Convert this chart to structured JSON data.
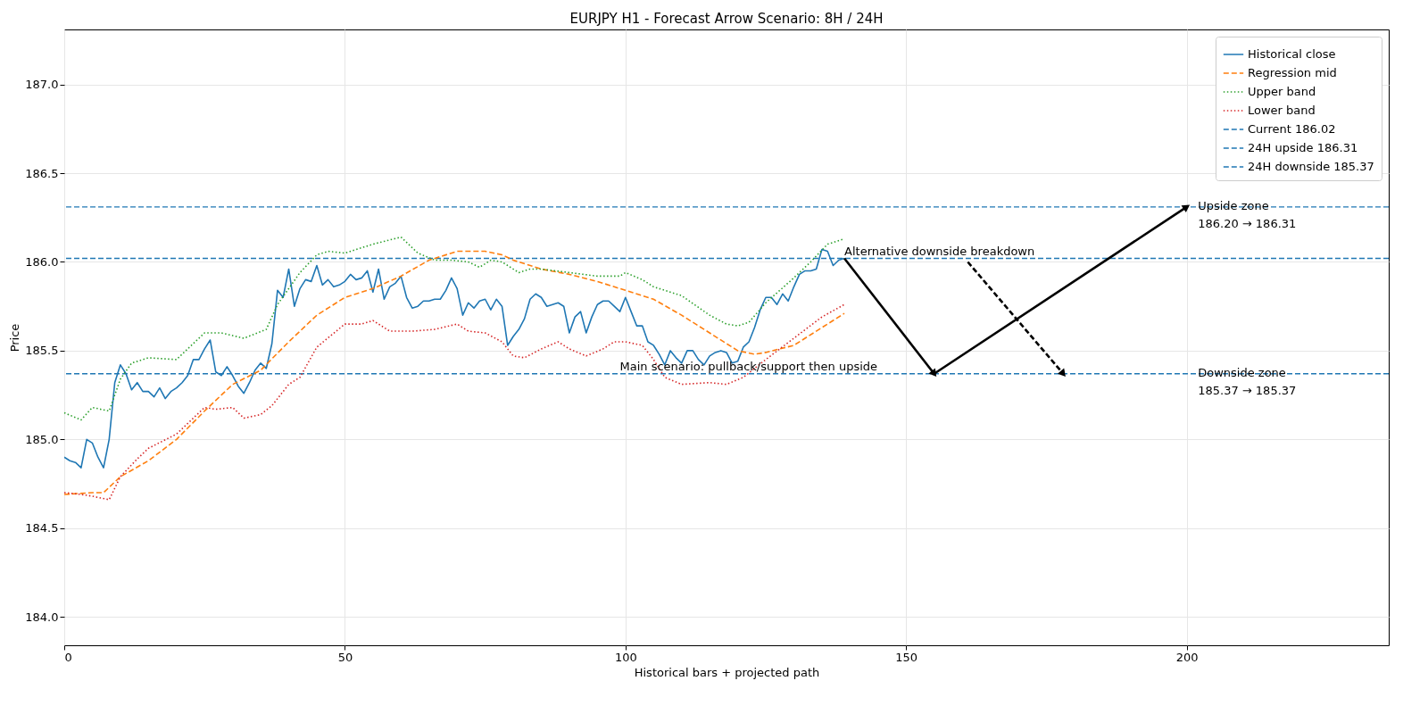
{
  "chart_data": {
    "type": "line",
    "title": "EURJPY H1 - Forecast Arrow Scenario: 8H / 24H",
    "xlabel": "Historical bars + projected path",
    "ylabel": "Price",
    "xlim": [
      0,
      236
    ],
    "ylim": [
      183.84,
      187.31
    ],
    "xticks": [
      0,
      50,
      100,
      150,
      200
    ],
    "yticks": [
      {
        "value": 184,
        "label": "184.0"
      },
      {
        "value": 184.5,
        "label": "184.5"
      },
      {
        "value": 185,
        "label": "185.0"
      },
      {
        "value": 185.5,
        "label": "185.5"
      },
      {
        "value": 186,
        "label": "186.0"
      },
      {
        "value": 186.5,
        "label": "186.5"
      },
      {
        "value": 187,
        "label": "187.0"
      }
    ],
    "grid": true,
    "legend": "top right",
    "series": [
      {
        "name": "Historical close",
        "color": "#1f77b4",
        "line_style": "solid",
        "x": [
          0,
          1,
          2,
          3,
          4,
          5,
          6,
          7,
          8,
          9,
          10,
          11,
          12,
          13,
          14,
          15,
          16,
          17,
          18,
          19,
          20,
          21,
          22,
          23,
          24,
          25,
          26,
          27,
          28,
          29,
          30,
          31,
          32,
          33,
          34,
          35,
          36,
          37,
          38,
          39,
          40,
          41,
          42,
          43,
          44,
          45,
          46,
          47,
          48,
          49,
          50,
          51,
          52,
          53,
          54,
          55,
          56,
          57,
          58,
          59,
          60,
          61,
          62,
          63,
          64,
          65,
          66,
          67,
          68,
          69,
          70,
          71,
          72,
          73,
          74,
          75,
          76,
          77,
          78,
          79,
          80,
          81,
          82,
          83,
          84,
          85,
          86,
          87,
          88,
          89,
          90,
          91,
          92,
          93,
          94,
          95,
          96,
          97,
          98,
          99,
          100,
          101,
          102,
          103,
          104,
          105,
          106,
          107,
          108,
          109,
          110,
          111,
          112,
          113,
          114,
          115,
          116,
          117,
          118,
          119,
          120,
          121,
          122,
          123,
          124,
          125,
          126,
          127,
          128,
          129,
          130,
          131,
          132,
          133,
          134,
          135,
          136,
          137,
          138,
          139
        ],
        "values": [
          184.9,
          184.88,
          184.87,
          184.84,
          185.0,
          184.98,
          184.9,
          184.84,
          185.0,
          185.32,
          185.42,
          185.37,
          185.28,
          185.32,
          185.27,
          185.27,
          185.24,
          185.29,
          185.23,
          185.27,
          185.29,
          185.32,
          185.36,
          185.45,
          185.45,
          185.51,
          185.56,
          185.38,
          185.36,
          185.41,
          185.36,
          185.3,
          185.26,
          185.32,
          185.39,
          185.43,
          185.4,
          185.54,
          185.84,
          185.8,
          185.96,
          185.75,
          185.85,
          185.9,
          185.89,
          185.98,
          185.87,
          185.9,
          185.86,
          185.87,
          185.89,
          185.93,
          185.9,
          185.91,
          185.95,
          185.83,
          185.96,
          185.79,
          185.86,
          185.88,
          185.92,
          185.8,
          185.74,
          185.75,
          185.78,
          185.78,
          185.79,
          185.79,
          185.84,
          185.91,
          185.85,
          185.7,
          185.77,
          185.74,
          185.78,
          185.79,
          185.73,
          185.79,
          185.75,
          185.53,
          185.58,
          185.62,
          185.68,
          185.79,
          185.82,
          185.8,
          185.75,
          185.76,
          185.77,
          185.75,
          185.6,
          185.69,
          185.72,
          185.6,
          185.69,
          185.76,
          185.78,
          185.78,
          185.75,
          185.72,
          185.8,
          185.72,
          185.64,
          185.64,
          185.55,
          185.53,
          185.48,
          185.42,
          185.5,
          185.46,
          185.43,
          185.5,
          185.5,
          185.45,
          185.42,
          185.47,
          185.49,
          185.5,
          185.49,
          185.43,
          185.44,
          185.52,
          185.55,
          185.63,
          185.73,
          185.8,
          185.8,
          185.76,
          185.82,
          185.78,
          185.86,
          185.93,
          185.95,
          185.95,
          185.96,
          186.07,
          186.06,
          185.98,
          186.01,
          186.02
        ]
      },
      {
        "name": "Regression mid",
        "color": "#ff7f0e",
        "line_style": "dashed",
        "x": [
          0,
          5,
          7,
          10,
          15,
          20,
          25,
          30,
          35,
          40,
          45,
          50,
          53,
          55,
          60,
          65,
          70,
          75,
          78,
          80,
          85,
          90,
          95,
          100,
          105,
          110,
          115,
          120,
          123,
          125,
          130,
          135,
          139
        ],
        "values": [
          184.69,
          184.7,
          184.7,
          184.79,
          184.88,
          185.0,
          185.16,
          185.31,
          185.39,
          185.55,
          185.7,
          185.8,
          185.83,
          185.85,
          185.92,
          186.01,
          186.06,
          186.06,
          186.04,
          186.01,
          185.96,
          185.93,
          185.89,
          185.84,
          185.79,
          185.7,
          185.6,
          185.5,
          185.48,
          185.49,
          185.53,
          185.63,
          185.71
        ]
      },
      {
        "name": "Upper band",
        "color": "#2ca02c",
        "line_style": "dotted",
        "x": [
          0,
          3,
          5,
          8,
          10,
          12,
          15,
          20,
          25,
          28,
          32,
          36,
          38,
          42,
          45,
          47,
          50,
          53,
          55,
          60,
          63,
          66,
          69,
          72,
          74,
          76,
          78,
          81,
          83,
          85,
          90,
          95,
          99,
          100,
          103,
          105,
          110,
          115,
          118,
          120,
          122,
          125,
          130,
          133,
          136,
          139
        ],
        "values": [
          185.15,
          185.11,
          185.18,
          185.16,
          185.34,
          185.43,
          185.46,
          185.45,
          185.6,
          185.6,
          185.57,
          185.62,
          185.76,
          185.94,
          186.04,
          186.06,
          186.05,
          186.08,
          186.1,
          186.14,
          186.05,
          186.01,
          186.01,
          186.0,
          185.97,
          186.01,
          186.0,
          185.94,
          185.96,
          185.96,
          185.94,
          185.92,
          185.92,
          185.94,
          185.9,
          185.86,
          185.81,
          185.7,
          185.65,
          185.64,
          185.66,
          185.77,
          185.91,
          186.0,
          186.1,
          186.13
        ]
      },
      {
        "name": "Lower band",
        "color": "#d62728",
        "line_style": "dotted",
        "x": [
          0,
          3,
          5,
          8,
          10,
          13,
          15,
          20,
          25,
          27,
          30,
          32,
          35,
          37,
          40,
          42,
          45,
          50,
          53,
          55,
          58,
          62,
          66,
          70,
          72,
          75,
          78,
          80,
          82,
          85,
          88,
          90,
          93,
          96,
          98,
          100,
          103,
          105,
          107,
          110,
          115,
          118,
          121,
          125,
          130,
          135,
          139
        ],
        "values": [
          184.7,
          184.69,
          184.68,
          184.66,
          184.79,
          184.89,
          184.95,
          185.03,
          185.18,
          185.17,
          185.18,
          185.12,
          185.14,
          185.19,
          185.31,
          185.35,
          185.52,
          185.65,
          185.65,
          185.67,
          185.61,
          185.61,
          185.62,
          185.65,
          185.61,
          185.6,
          185.55,
          185.47,
          185.46,
          185.51,
          185.55,
          185.51,
          185.47,
          185.51,
          185.55,
          185.55,
          185.53,
          185.45,
          185.35,
          185.31,
          185.32,
          185.31,
          185.35,
          185.45,
          185.57,
          185.69,
          185.76
        ]
      },
      {
        "color": "#000000",
        "line_style": "solid",
        "x": [
          139,
          155,
          200
        ],
        "values": [
          186.02,
          185.37,
          186.31
        ]
      },
      {
        "color": "#000000",
        "line_style": "dashed",
        "x": [
          161,
          178
        ],
        "values": [
          186.0,
          185.37
        ]
      }
    ],
    "ref_lines": [
      {
        "axis": "y",
        "value": 186.02,
        "label": "Current 186.02",
        "color": "#1f77b4",
        "line_style": "dashed"
      },
      {
        "axis": "y",
        "value": 186.31,
        "label": "24H upside 186.31",
        "color": "#1f77b4",
        "line_style": "dashed"
      },
      {
        "axis": "y",
        "value": 185.37,
        "label": "24H downside 185.37",
        "color": "#1f77b4",
        "line_style": "dashed"
      }
    ],
    "annotations": [
      {
        "text": "Upside zone\n186.20 → 186.31",
        "x": 202,
        "y": 186.31
      },
      {
        "text": "Downside zone\n185.37 → 185.37",
        "x": 202,
        "y": 185.37
      },
      {
        "text": "Alternative downside breakdown",
        "x": 139,
        "y": 186.02
      },
      {
        "text": "Main scenario: pullback/support then upside",
        "x": 99,
        "y": 185.37
      }
    ]
  }
}
